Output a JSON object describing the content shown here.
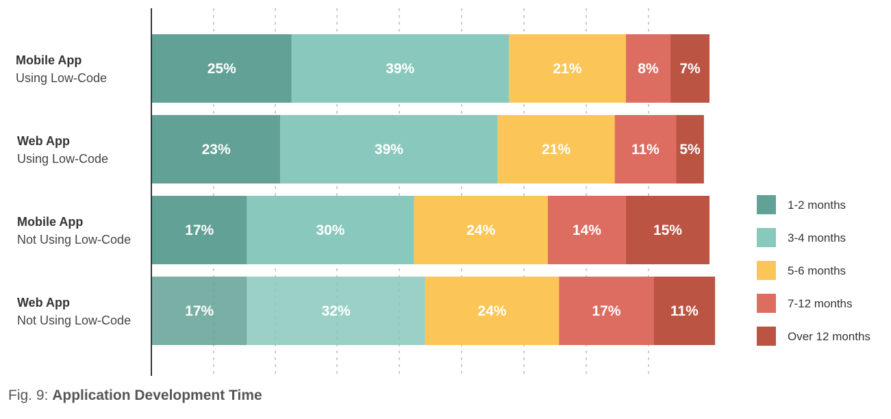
{
  "caption": {
    "prefix": "Fig. 9: ",
    "title": "Application Development Time"
  },
  "chart_data": {
    "type": "bar",
    "orientation": "horizontal",
    "stacked": true,
    "title": "Application Development Time",
    "xlim": [
      0,
      100
    ],
    "grid": true,
    "legend_position": "right",
    "categories": [
      {
        "title": "Mobile App",
        "subtitle": "Using Low-Code"
      },
      {
        "title": "Web App",
        "subtitle": "Using Low-Code"
      },
      {
        "title": "Mobile App",
        "subtitle": "Not Using Low-Code"
      },
      {
        "title": "Web App",
        "subtitle": "Not Using Low-Code"
      }
    ],
    "series": [
      {
        "name": "1-2 months",
        "color": "#62a195",
        "values": [
          25,
          23,
          17,
          17
        ],
        "labels": [
          "25%",
          "23%",
          "17%",
          "17%"
        ]
      },
      {
        "name": "3-4 months",
        "color": "#89c8bc",
        "values": [
          39,
          39,
          30,
          32
        ],
        "labels": [
          "39%",
          "39%",
          "30%",
          "32%"
        ]
      },
      {
        "name": "5-6 months",
        "color": "#fbc657",
        "values": [
          21,
          21,
          24,
          24
        ],
        "labels": [
          "21%",
          "21%",
          "24%",
          "24%"
        ]
      },
      {
        "name": "7-12 months",
        "color": "#dd6d61",
        "values": [
          8,
          11,
          14,
          17
        ],
        "labels": [
          "8%",
          "11%",
          "14%",
          "17%"
        ]
      },
      {
        "name": "Over 12 months",
        "color": "#bb5443",
        "values": [
          7,
          5,
          15,
          11
        ],
        "labels": [
          "7%",
          "5%",
          "15%",
          "11%"
        ]
      }
    ],
    "highlight_faded_rows": [
      3
    ]
  }
}
